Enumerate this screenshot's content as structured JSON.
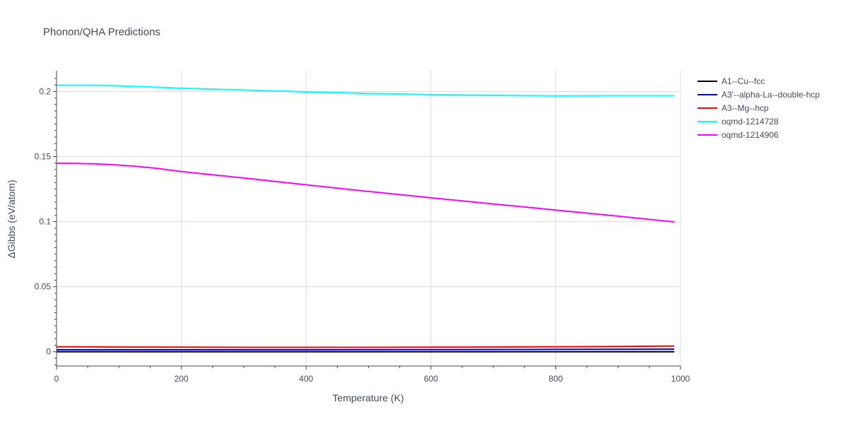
{
  "chart_data": {
    "type": "line",
    "title": "Phonon/QHA Predictions",
    "xlabel": "Temperature (K)",
    "ylabel": "ΔGibbs (eV/atom)",
    "xlim": [
      0,
      1000
    ],
    "ylim": [
      -0.011,
      0.216
    ],
    "xticks": [
      0,
      200,
      400,
      600,
      800,
      1000
    ],
    "xtick_labels": [
      "0",
      "200",
      "400",
      "600",
      "800",
      "1000"
    ],
    "yticks": [
      0,
      0.05,
      0.1,
      0.15,
      0.2
    ],
    "ytick_labels": [
      "0",
      "0.05",
      "0.1",
      "0.15",
      "0.2"
    ],
    "grid": true,
    "legend_position": "right",
    "series": [
      {
        "name": "A1--Cu--fcc",
        "color": "#000000",
        "x": [
          0,
          200,
          400,
          600,
          800,
          990
        ],
        "y": [
          0,
          0,
          0,
          0,
          0,
          0
        ]
      },
      {
        "name": "A3'--alpha-La--double-hcp",
        "color": "#0000ff",
        "x": [
          0,
          200,
          400,
          600,
          800,
          990
        ],
        "y": [
          0.0015,
          0.0015,
          0.0015,
          0.0016,
          0.0018,
          0.002
        ]
      },
      {
        "name": "A3--Mg--hcp",
        "color": "#ff0000",
        "x": [
          0,
          100,
          200,
          300,
          400,
          500,
          600,
          700,
          800,
          900,
          990
        ],
        "y": [
          0.0038,
          0.0036,
          0.0035,
          0.0034,
          0.0034,
          0.0034,
          0.0035,
          0.0036,
          0.0038,
          0.0041,
          0.0044
        ]
      },
      {
        "name": "oqmd-1214728",
        "color": "#00ffff",
        "x": [
          0,
          40,
          80,
          120,
          160,
          200,
          300,
          400,
          500,
          600,
          700,
          800,
          900,
          990
        ],
        "y": [
          0.2048,
          0.2048,
          0.2046,
          0.204,
          0.2033,
          0.2025,
          0.2011,
          0.1997,
          0.1985,
          0.1976,
          0.197,
          0.1966,
          0.1967,
          0.1967
        ]
      },
      {
        "name": "oqmd-1214906",
        "color": "#ff00ff",
        "x": [
          0,
          30,
          60,
          90,
          120,
          160,
          200,
          300,
          400,
          500,
          600,
          700,
          800,
          900,
          990
        ],
        "y": [
          0.1448,
          0.1447,
          0.1444,
          0.1437,
          0.1428,
          0.141,
          0.1385,
          0.1335,
          0.1283,
          0.1232,
          0.1183,
          0.1136,
          0.1089,
          0.1042,
          0.0998
        ]
      }
    ]
  }
}
